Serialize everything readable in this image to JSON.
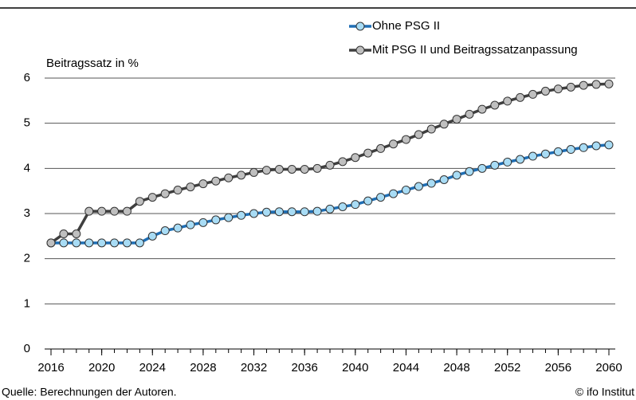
{
  "chart_data": {
    "type": "line",
    "y_label": "Beitragssatz in %",
    "source": "Quelle: Berechnungen der Autoren.",
    "credit": "© ifo Institut",
    "x": [
      2016,
      2017,
      2018,
      2019,
      2020,
      2021,
      2022,
      2023,
      2024,
      2025,
      2026,
      2027,
      2028,
      2029,
      2030,
      2031,
      2032,
      2033,
      2034,
      2035,
      2036,
      2037,
      2038,
      2039,
      2040,
      2041,
      2042,
      2043,
      2044,
      2045,
      2046,
      2047,
      2048,
      2049,
      2050,
      2051,
      2052,
      2053,
      2054,
      2055,
      2056,
      2057,
      2058,
      2059,
      2060
    ],
    "series": [
      {
        "name": "Ohne PSG II",
        "color": "#1f6fb5",
        "marker_color": "#a8dcf5",
        "values": [
          2.35,
          2.35,
          2.35,
          2.35,
          2.35,
          2.35,
          2.35,
          2.35,
          2.5,
          2.62,
          2.68,
          2.75,
          2.8,
          2.86,
          2.91,
          2.96,
          3.0,
          3.03,
          3.04,
          3.04,
          3.04,
          3.05,
          3.1,
          3.15,
          3.2,
          3.28,
          3.36,
          3.44,
          3.52,
          3.6,
          3.67,
          3.75,
          3.85,
          3.93,
          4.0,
          4.07,
          4.14,
          4.2,
          4.27,
          4.32,
          4.37,
          4.42,
          4.46,
          4.5,
          4.52
        ]
      },
      {
        "name": "Mit PSG II und Beitragssatzanpassung",
        "color": "#3f3f3f",
        "marker_color": "#bfbfbf",
        "values": [
          2.35,
          2.55,
          2.55,
          3.05,
          3.05,
          3.05,
          3.05,
          3.27,
          3.36,
          3.44,
          3.52,
          3.59,
          3.66,
          3.72,
          3.79,
          3.85,
          3.91,
          3.96,
          3.98,
          3.98,
          3.98,
          4.0,
          4.07,
          4.15,
          4.24,
          4.34,
          4.44,
          4.54,
          4.64,
          4.75,
          4.87,
          4.98,
          5.09,
          5.2,
          5.31,
          5.4,
          5.49,
          5.57,
          5.64,
          5.71,
          5.76,
          5.8,
          5.84,
          5.86,
          5.87
        ]
      }
    ],
    "xlim": [
      2016,
      2060
    ],
    "xticks": [
      2016,
      2020,
      2024,
      2028,
      2032,
      2036,
      2040,
      2044,
      2048,
      2052,
      2056,
      2060
    ],
    "ylim": [
      0,
      6
    ],
    "yticks": [
      0,
      1,
      2,
      3,
      4,
      5,
      6
    ],
    "grid": true
  }
}
